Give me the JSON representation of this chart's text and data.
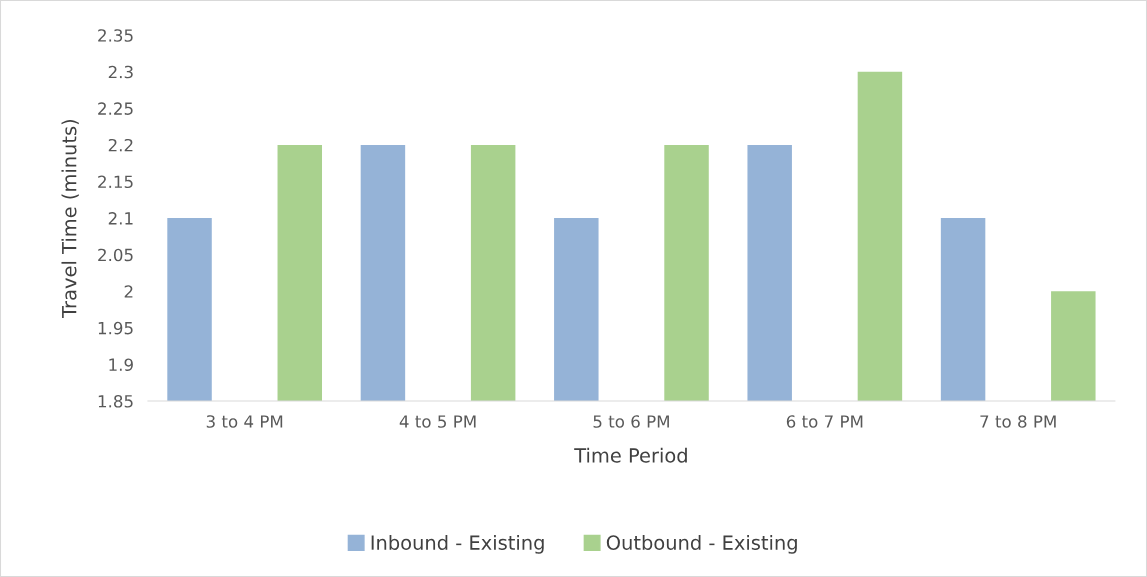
{
  "chart_data": {
    "type": "bar",
    "xlabel": "Time Period",
    "ylabel": "Travel Time (minuts)",
    "categories": [
      "3 to 4 PM",
      "4 to 5 PM",
      "5 to 6 PM",
      "6 to 7 PM",
      "7 to 8 PM"
    ],
    "series": [
      {
        "name": "Inbound - Existing",
        "color": "#95b3d7",
        "values": [
          2.1,
          2.2,
          2.1,
          2.2,
          2.1
        ]
      },
      {
        "name": "Outbound - Existing",
        "color": "#a9d18e",
        "values": [
          2.2,
          2.2,
          2.2,
          2.3,
          2.0
        ]
      }
    ],
    "ylim": [
      1.85,
      2.35
    ],
    "yticks": [
      1.85,
      1.9,
      1.95,
      2,
      2.05,
      2.1,
      2.15,
      2.2,
      2.25,
      2.3,
      2.35
    ],
    "grid": false,
    "legend": "bottom"
  }
}
